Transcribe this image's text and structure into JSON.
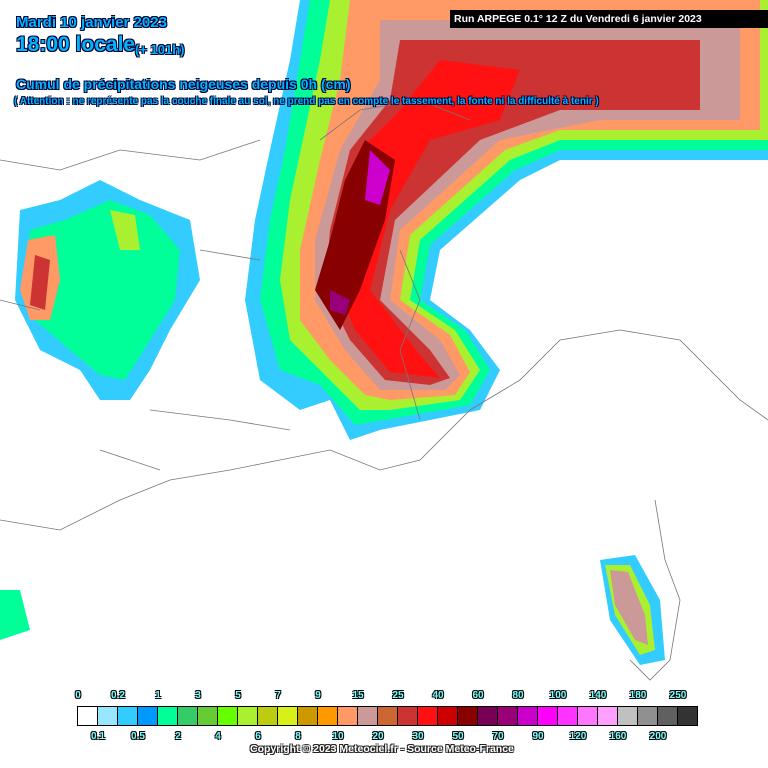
{
  "header": {
    "date": "Mardi 10 janvier 2023",
    "time": "18:00 locale",
    "lead": "(+ 101h)",
    "title": "Cumul de précipitations neigeuses depuis 0h (cm)",
    "warning": "( Attention : ne représente pas la couche finale au sol, ne prend pas en compte le tassement, la fonte ni la difficulté à tenir )",
    "run": "Run ARPEGE 0.1° 12 Z du Vendredi 6 janvier 2023"
  },
  "legend": {
    "labels": [
      "0",
      "0.1",
      "0.2",
      "0.5",
      "1",
      "2",
      "3",
      "4",
      "5",
      "6",
      "7",
      "8",
      "9",
      "10",
      "15",
      "20",
      "25",
      "30",
      "40",
      "50",
      "60",
      "70",
      "80",
      "90",
      "100",
      "120",
      "140",
      "160",
      "180",
      "200",
      "250"
    ],
    "colors": [
      "#ffffff",
      "#99e6ff",
      "#33ccff",
      "#0099ff",
      "#00ff99",
      "#33cc66",
      "#66cc33",
      "#66ff00",
      "#a8f030",
      "#bbcc11",
      "#d8f01a",
      "#cc9900",
      "#ff9900",
      "#ff9966",
      "#cc9999",
      "#cc6633",
      "#cc3333",
      "#ff1111",
      "#cc0000",
      "#880000",
      "#770055",
      "#990077",
      "#cc00cc",
      "#ff00ff",
      "#ff33ff",
      "#ff77ff",
      "#ffa0ff",
      "#c0c0c0",
      "#909090",
      "#606060",
      "#333333"
    ]
  },
  "copyright": "Copyright © 2023 Meteociel.fr - Source Meteo-France"
}
